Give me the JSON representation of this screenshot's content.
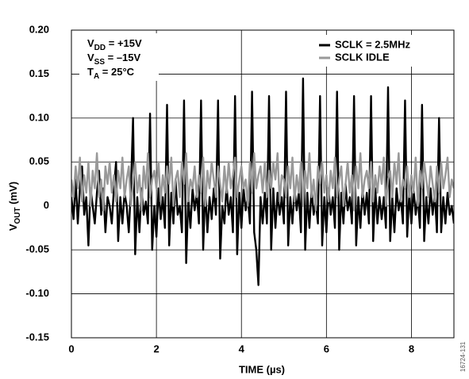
{
  "chart_data": {
    "type": "line",
    "x_label": "TIME (µs)",
    "y_label": {
      "text": "V",
      "sub": "OUT",
      "rest": " (mV)"
    },
    "annotations": [
      {
        "text": "V",
        "sub": "DD",
        "rest": " = +15V"
      },
      {
        "text": "V",
        "sub": "SS",
        "rest": " = –15V"
      },
      {
        "text": "T",
        "sub": "A",
        "rest": " = 25°C"
      }
    ],
    "figure_id": "16724-131",
    "legend": "upper right",
    "grid": true,
    "xlim": [
      0,
      9
    ],
    "xticks": [
      0,
      2,
      4,
      6,
      8
    ],
    "ylim": [
      -0.15,
      0.2
    ],
    "yticks": [
      -0.15,
      {
        "value": -0.1,
        "label": "-0.10"
      },
      -0.05,
      0,
      0.05,
      {
        "value": 0.1,
        "label": "0.10"
      },
      0.15,
      {
        "value": 0.2,
        "label": "0.20"
      }
    ],
    "x": [
      0,
      0.05,
      0.1,
      0.15,
      0.2,
      0.25,
      0.3,
      0.35,
      0.4,
      0.45,
      0.5,
      0.55,
      0.6,
      0.65,
      0.7,
      0.75,
      0.8,
      0.85,
      0.9,
      0.95,
      1,
      1.05,
      1.1,
      1.15,
      1.2,
      1.25,
      1.3,
      1.35,
      1.4,
      1.45,
      1.5,
      1.55,
      1.6,
      1.65,
      1.7,
      1.75,
      1.8,
      1.85,
      1.9,
      1.95,
      2,
      2.05,
      2.1,
      2.15,
      2.2,
      2.25,
      2.3,
      2.35,
      2.4,
      2.45,
      2.5,
      2.55,
      2.6,
      2.65,
      2.7,
      2.75,
      2.8,
      2.85,
      2.9,
      2.95,
      3,
      3.05,
      3.1,
      3.15,
      3.2,
      3.25,
      3.3,
      3.35,
      3.4,
      3.45,
      3.5,
      3.55,
      3.6,
      3.65,
      3.7,
      3.75,
      3.8,
      3.85,
      3.9,
      3.95,
      4,
      4.05,
      4.1,
      4.15,
      4.2,
      4.25,
      4.3,
      4.35,
      4.4,
      4.45,
      4.5,
      4.55,
      4.6,
      4.65,
      4.7,
      4.75,
      4.8,
      4.85,
      4.9,
      4.95,
      5,
      5.05,
      5.1,
      5.15,
      5.2,
      5.25,
      5.3,
      5.35,
      5.4,
      5.45,
      5.5,
      5.55,
      5.6,
      5.65,
      5.7,
      5.75,
      5.8,
      5.85,
      5.9,
      5.95,
      6,
      6.05,
      6.1,
      6.15,
      6.2,
      6.25,
      6.3,
      6.35,
      6.4,
      6.45,
      6.5,
      6.55,
      6.6,
      6.65,
      6.7,
      6.75,
      6.8,
      6.85,
      6.9,
      6.95,
      7,
      7.05,
      7.1,
      7.15,
      7.2,
      7.25,
      7.3,
      7.35,
      7.4,
      7.45,
      7.5,
      7.55,
      7.6,
      7.65,
      7.7,
      7.75,
      7.8,
      7.85,
      7.9,
      7.95,
      8,
      8.05,
      8.1,
      8.15,
      8.2,
      8.25,
      8.3,
      8.35,
      8.4,
      8.45,
      8.5,
      8.55,
      8.6,
      8.65,
      8.7,
      8.75,
      8.8,
      8.85,
      8.9,
      8.95,
      9
    ],
    "series": [
      {
        "name": "SCLK = 2.5MHz",
        "color": "#000000",
        "values": [
          0.01,
          -0.015,
          0.03,
          -0.02,
          0.02,
          0.045,
          -0.01,
          0.01,
          -0.045,
          0.02,
          0,
          -0.02,
          0.015,
          0.04,
          -0.01,
          0.02,
          -0.03,
          0.01,
          0,
          -0.02,
          0.02,
          0.05,
          -0.04,
          0.01,
          -0.02,
          0.015,
          0,
          -0.03,
          0.02,
          0.1,
          -0.055,
          0.01,
          -0.03,
          0.02,
          -0.01,
          0.005,
          -0.02,
          0.105,
          -0.05,
          0,
          -0.035,
          0.02,
          -0.015,
          0.01,
          -0.025,
          0.115,
          -0.045,
          0.015,
          -0.02,
          0.03,
          -0.01,
          0,
          -0.03,
          0.12,
          -0.065,
          0.01,
          -0.025,
          0.02,
          -0.005,
          0.015,
          -0.02,
          0.12,
          -0.05,
          0.02,
          -0.03,
          0.01,
          -0.015,
          0.02,
          -0.01,
          0.12,
          -0.06,
          0,
          -0.02,
          0.025,
          -0.01,
          0.01,
          -0.03,
          0.125,
          -0.055,
          0.015,
          -0.025,
          0.02,
          -0.005,
          0.01,
          -0.02,
          0.13,
          -0.03,
          -0.05,
          -0.09,
          0.01,
          -0.02,
          0.015,
          -0.02,
          0.125,
          -0.05,
          0.02,
          -0.025,
          0.015,
          -0.01,
          0.01,
          -0.02,
          0.13,
          -0.045,
          0.01,
          -0.02,
          0.02,
          -0.005,
          0.015,
          -0.03,
          0.145,
          -0.05,
          0.015,
          -0.025,
          0.02,
          -0.01,
          0.005,
          -0.02,
          0.125,
          -0.045,
          0.01,
          -0.03,
          0.02,
          -0.01,
          0.01,
          -0.025,
          0.13,
          -0.05,
          0.015,
          -0.02,
          0.025,
          -0.005,
          0.01,
          -0.02,
          0.125,
          -0.045,
          0.01,
          -0.025,
          0.02,
          -0.01,
          0.015,
          -0.02,
          0.125,
          -0.04,
          0.02,
          -0.02,
          0.01,
          -0.015,
          0.01,
          -0.025,
          0.135,
          -0.04,
          0.01,
          -0.03,
          0.02,
          -0.005,
          0.01,
          -0.02,
          0.12,
          -0.035,
          0.015,
          -0.02,
          0.02,
          -0.01,
          0.01,
          -0.025,
          0.115,
          -0.04,
          0.01,
          -0.02,
          0.02,
          -0.01,
          0.015,
          -0.03,
          0.1,
          -0.03,
          0.01,
          -0.02,
          0.015,
          -0.01,
          0,
          -0.02
        ]
      },
      {
        "name": "SCLK IDLE",
        "color": "#999999",
        "values": [
          0.03,
          0.01,
          0.045,
          0.02,
          0.055,
          0.005,
          0.035,
          0.015,
          0.05,
          0,
          0.04,
          0.02,
          0.06,
          0.01,
          0.03,
          -0.005,
          0.045,
          0.025,
          0.05,
          0.015,
          0.035,
          0.005,
          0.04,
          0.02,
          0.055,
          0.01,
          0.03,
          0.045,
          0,
          0.025,
          0.05,
          0.015,
          0.035,
          -0.005,
          0.045,
          0.02,
          0.06,
          0.01,
          0.03,
          0.04,
          0.02,
          0.05,
          0.005,
          0.035,
          0.015,
          0.045,
          0.025,
          0.055,
          0,
          0.03,
          0.04,
          0.01,
          0.05,
          0.025,
          0.06,
          0.005,
          0.03,
          0.02,
          0.045,
          0.01,
          0.035,
          0.015,
          0.055,
          0,
          0.04,
          0.02,
          0.05,
          0.03,
          0.01,
          0.045,
          0.025,
          0.005,
          0.045,
          0.015,
          0.05,
          0.02,
          0.035,
          0.055,
          0.01,
          0.03,
          0.045,
          0.02,
          0.03,
          0,
          0.05,
          0.015,
          0.06,
          0.02,
          0.035,
          0.045,
          0.015,
          0.05,
          0.01,
          0.04,
          0.02,
          0.05,
          0.03,
          0.06,
          0.005,
          0.035,
          0.03,
          0.01,
          0.045,
          0.02,
          0.055,
          0.005,
          0.035,
          0.015,
          0.05,
          0,
          0.04,
          0.02,
          0.06,
          0.01,
          0.03,
          -0.005,
          0.045,
          0.025,
          0.05,
          0.015,
          0.035,
          0.005,
          0.04,
          0.02,
          0.055,
          0.01,
          0.03,
          0.045,
          0,
          0.025,
          0.05,
          0.015,
          0.035,
          -0.005,
          0.045,
          0.02,
          0.06,
          0.01,
          0.03,
          0.04,
          0.02,
          0.05,
          0.005,
          0.035,
          0.015,
          0.045,
          0.025,
          0.055,
          0,
          0.03,
          0.04,
          0.01,
          0.05,
          0.025,
          0.06,
          0.005,
          0.03,
          0.02,
          0.045,
          0.01,
          0.035,
          0.015,
          0.055,
          0,
          0.04,
          0.02,
          0.05,
          0.03,
          0.01,
          0.045,
          0.025,
          0.005,
          0.045,
          0.015,
          0.05,
          0.02,
          0.035,
          0.055,
          0.01,
          0.03,
          0.02
        ]
      }
    ]
  }
}
